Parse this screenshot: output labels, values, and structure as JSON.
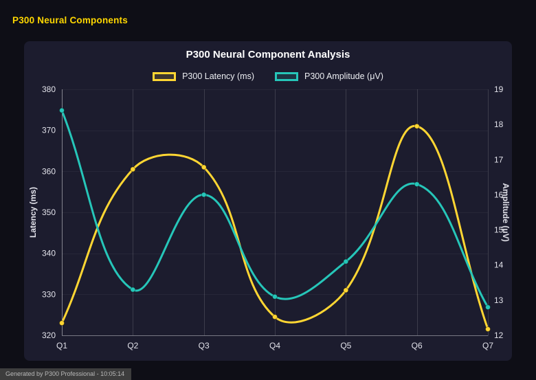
{
  "page": {
    "header": "P300 Neural Components",
    "accent_color": "#ffd700",
    "footer": "Generated by P300 Professional - 10:05:14"
  },
  "chart_data": {
    "type": "line",
    "title": "P300 Neural Component Analysis",
    "categories": [
      "Q1",
      "Q2",
      "Q3",
      "Q4",
      "Q5",
      "Q6",
      "Q7"
    ],
    "series": [
      {
        "name": "P300 Latency (ms)",
        "axis": "left",
        "color": "#ffd633",
        "values": [
          323,
          360.5,
          361,
          324.5,
          331,
          371,
          321.5
        ]
      },
      {
        "name": "P300 Amplitude (μV)",
        "axis": "right",
        "color": "#26c6b9",
        "values": [
          18.4,
          13.3,
          16.0,
          13.1,
          14.1,
          16.3,
          12.8
        ]
      }
    ],
    "left_axis": {
      "label": "Latency (ms)",
      "min": 320,
      "max": 380,
      "step": 10
    },
    "right_axis": {
      "label": "Amplitude (μV)",
      "min": 12,
      "max": 19,
      "step": 1
    },
    "legend_position": "top",
    "grid": "vertical",
    "tension": 0.4
  }
}
